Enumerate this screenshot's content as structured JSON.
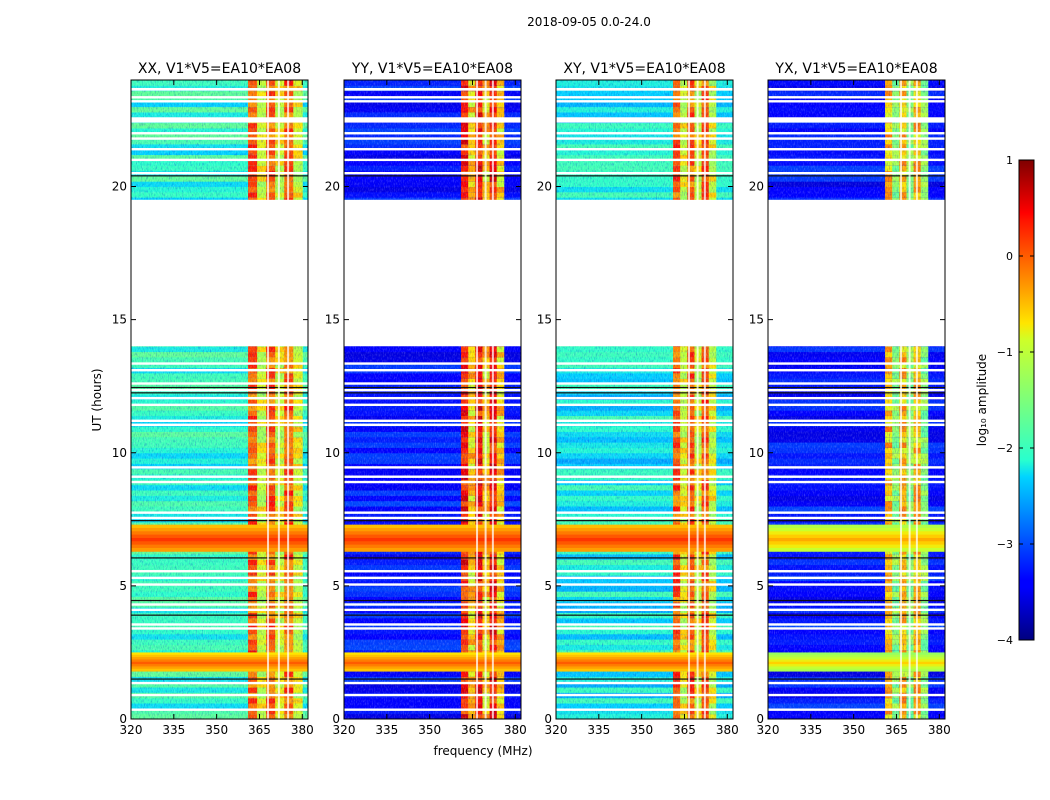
{
  "figure": {
    "suptitle": "2018-09-05 0.0-24.0",
    "xlabel": "frequency (MHz)",
    "ylabel": "UT (hours)",
    "colorbar": {
      "label": "log₁₀ amplitude",
      "ticks": [
        "1",
        "0",
        "−1",
        "−2",
        "−3",
        "−4"
      ]
    }
  },
  "chart_data": [
    {
      "type": "heatmap",
      "title": "XX, V1*V5=EA10*EA08",
      "xlabel": "",
      "ylabel": "UT (hours)",
      "xlim": [
        320,
        382
      ],
      "ylim": [
        0,
        24
      ],
      "xticks": [
        "320",
        "335",
        "350",
        "365",
        "380"
      ],
      "yticks": [
        "0",
        "5",
        "10",
        "15",
        "20"
      ],
      "data_gap_hours": [
        19.5,
        14.0
      ],
      "strong_band_mhz": [
        361,
        380
      ],
      "broadband_rfi_hours": [
        [
          1.8,
          2.5
        ],
        [
          6.3,
          7.3
        ]
      ],
      "background_log10_amp": -2.0,
      "band_log10_amp": 0.0
    },
    {
      "type": "heatmap",
      "title": "YY, V1*V5=EA10*EA08",
      "xlabel": "frequency (MHz)",
      "ylabel": "",
      "xlim": [
        320,
        382
      ],
      "ylim": [
        0,
        24
      ],
      "xticks": [
        "320",
        "335",
        "350",
        "365",
        "380"
      ],
      "yticks": [
        "0",
        "5",
        "10",
        "15",
        "20"
      ],
      "data_gap_hours": [
        19.5,
        14.0
      ],
      "strong_band_mhz": [
        361,
        376
      ],
      "broadband_rfi_hours": [
        [
          1.8,
          2.5
        ],
        [
          6.3,
          7.3
        ]
      ],
      "background_log10_amp": -3.3,
      "band_log10_amp": 0.3
    },
    {
      "type": "heatmap",
      "title": "XY, V1*V5=EA10*EA08",
      "xlabel": "",
      "ylabel": "",
      "xlim": [
        320,
        382
      ],
      "ylim": [
        0,
        24
      ],
      "xticks": [
        "320",
        "335",
        "350",
        "365",
        "380"
      ],
      "yticks": [
        "0",
        "5",
        "10",
        "15",
        "20"
      ],
      "data_gap_hours": [
        19.5,
        14.0
      ],
      "strong_band_mhz": [
        361,
        376
      ],
      "broadband_rfi_hours": [
        [
          1.8,
          2.5
        ],
        [
          6.3,
          7.3
        ]
      ],
      "background_log10_amp": -2.2,
      "band_log10_amp": 0.0
    },
    {
      "type": "heatmap",
      "title": "YX, V1*V5=EA10*EA08",
      "xlabel": "",
      "ylabel": "",
      "xlim": [
        320,
        382
      ],
      "ylim": [
        0,
        24
      ],
      "xticks": [
        "320",
        "335",
        "350",
        "365",
        "380"
      ],
      "yticks": [
        "0",
        "5",
        "10",
        "15",
        "20"
      ],
      "data_gap_hours": [
        19.5,
        14.0
      ],
      "strong_band_mhz": [
        361,
        376
      ],
      "broadband_rfi_hours": [
        [
          1.8,
          2.5
        ],
        [
          6.3,
          7.3
        ]
      ],
      "background_log10_amp": -3.3,
      "band_log10_amp": -0.5
    }
  ]
}
